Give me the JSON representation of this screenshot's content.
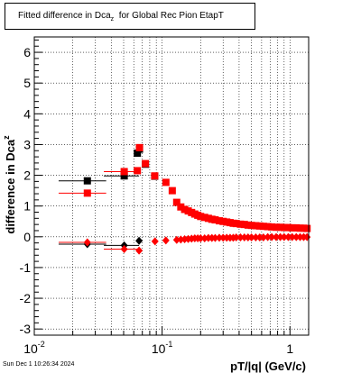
{
  "title": {
    "main": "Fitted difference in Dca",
    "sub": "z",
    "rest": "  for Global Rec Pion EtapT"
  },
  "datestamp": "Sun Dec  1 10:26:34 2024",
  "chart_data": {
    "type": "scatter",
    "title": "Fitted difference in Dca_z  for Global Rec Pion EtapT",
    "xlabel": "pT/|q| (GeV/c)",
    "ylabel_main": "difference in Dca",
    "ylabel_sub": "z",
    "xscale": "log",
    "xlim": [
      0.01,
      1.4
    ],
    "ylim": [
      -3.2,
      6.5
    ],
    "grid": true,
    "yticks": [
      -3,
      -2,
      -1,
      0,
      1,
      2,
      3,
      4,
      5,
      6
    ],
    "xtick_labels": [
      {
        "value": 0.01,
        "base": "10",
        "exp": "-2"
      },
      {
        "value": 0.1,
        "base": "10",
        "exp": "-1"
      },
      {
        "value": 1,
        "base": "1",
        "exp": ""
      }
    ],
    "colors": {
      "black": "#000000",
      "red": "#ff0000"
    },
    "series": [
      {
        "marker": "square",
        "color": "#000000",
        "x": [
          0.026,
          0.0505,
          0.064,
          0.0665,
          0.074,
          0.0875
        ],
        "y": [
          1.82,
          1.98,
          2.72,
          2.85,
          2.36,
          1.97
        ],
        "xerr_lo": [
          0.0105,
          0.0155,
          0,
          0,
          0,
          0
        ],
        "xerr_hi": [
          0.0105,
          0.0155,
          0,
          0,
          0,
          0
        ]
      },
      {
        "marker": "square",
        "color": "#ff0000",
        "x": [
          0.026,
          0.0505,
          0.064,
          0.0665,
          0.074,
          0.0875,
          0.107,
          0.12,
          0.13,
          0.14,
          0.15,
          0.16,
          0.17,
          0.18,
          0.19,
          0.2,
          0.215,
          0.23,
          0.245,
          0.26,
          0.28,
          0.3,
          0.32,
          0.34,
          0.36,
          0.38,
          0.41,
          0.44,
          0.47,
          0.5,
          0.54,
          0.58,
          0.62,
          0.67,
          0.72,
          0.78,
          0.84,
          0.9,
          0.97,
          1.04,
          1.12,
          1.2,
          1.28,
          1.36
        ],
        "y": [
          1.42,
          2.12,
          2.15,
          2.9,
          2.38,
          1.98,
          1.77,
          1.5,
          1.12,
          0.97,
          0.89,
          0.84,
          0.79,
          0.74,
          0.7,
          0.66,
          0.63,
          0.6,
          0.57,
          0.55,
          0.52,
          0.5,
          0.48,
          0.46,
          0.44,
          0.43,
          0.41,
          0.4,
          0.38,
          0.37,
          0.36,
          0.35,
          0.34,
          0.33,
          0.32,
          0.31,
          0.31,
          0.3,
          0.3,
          0.29,
          0.29,
          0.28,
          0.28,
          0.27
        ],
        "xerr_lo": [
          0.0105,
          0.0155,
          0,
          0,
          0,
          0,
          0,
          0,
          0,
          0,
          0,
          0,
          0,
          0,
          0,
          0,
          0,
          0,
          0,
          0,
          0,
          0,
          0,
          0,
          0,
          0,
          0,
          0,
          0,
          0,
          0,
          0,
          0,
          0,
          0,
          0,
          0,
          0,
          0,
          0,
          0,
          0,
          0,
          0
        ],
        "xerr_hi": [
          0.0105,
          0.0155,
          0,
          0,
          0,
          0,
          0,
          0,
          0,
          0,
          0,
          0,
          0,
          0,
          0,
          0,
          0,
          0,
          0,
          0,
          0,
          0,
          0,
          0,
          0,
          0,
          0,
          0,
          0,
          0,
          0,
          0,
          0,
          0,
          0,
          0,
          0,
          0,
          0,
          0,
          0,
          0,
          0,
          0
        ]
      },
      {
        "marker": "diamond",
        "color": "#000000",
        "x": [
          0.026,
          0.0505,
          0.066
        ],
        "y": [
          -0.24,
          -0.28,
          -0.13
        ],
        "xerr_lo": [
          0.0105,
          0.0155,
          0
        ],
        "xerr_hi": [
          0.0105,
          0.0155,
          0
        ]
      },
      {
        "marker": "diamond",
        "color": "#ff0000",
        "x": [
          0.026,
          0.0505,
          0.066,
          0.088,
          0.107,
          0.13,
          0.14,
          0.15,
          0.16,
          0.17,
          0.18,
          0.19,
          0.2,
          0.215,
          0.23,
          0.245,
          0.26,
          0.28,
          0.3,
          0.32,
          0.34,
          0.36,
          0.38,
          0.41,
          0.44,
          0.47,
          0.5,
          0.54,
          0.58,
          0.62,
          0.67,
          0.72,
          0.78,
          0.84,
          0.9,
          0.97,
          1.04,
          1.12,
          1.2,
          1.28,
          1.36
        ],
        "y": [
          -0.18,
          -0.4,
          -0.45,
          -0.15,
          -0.12,
          -0.1,
          -0.09,
          -0.08,
          -0.07,
          -0.06,
          -0.05,
          -0.05,
          -0.05,
          -0.05,
          -0.04,
          -0.04,
          -0.04,
          -0.03,
          -0.03,
          -0.03,
          -0.03,
          -0.03,
          -0.02,
          -0.02,
          -0.02,
          -0.02,
          -0.02,
          -0.02,
          -0.02,
          -0.02,
          -0.01,
          -0.01,
          -0.01,
          -0.01,
          -0.01,
          -0.01,
          -0.01,
          -0.01,
          -0.01,
          -0.01,
          -0.01
        ],
        "xerr_lo": [
          0.0105,
          0.0155,
          0,
          0,
          0,
          0,
          0,
          0,
          0,
          0,
          0,
          0,
          0,
          0,
          0,
          0,
          0,
          0,
          0,
          0,
          0,
          0,
          0,
          0,
          0,
          0,
          0,
          0,
          0,
          0,
          0,
          0,
          0,
          0,
          0,
          0,
          0,
          0,
          0,
          0,
          0
        ],
        "xerr_hi": [
          0.0105,
          0.0155,
          0,
          0,
          0,
          0,
          0,
          0,
          0,
          0,
          0,
          0,
          0,
          0,
          0,
          0,
          0,
          0,
          0,
          0,
          0,
          0,
          0,
          0,
          0,
          0,
          0,
          0,
          0,
          0,
          0,
          0,
          0,
          0,
          0,
          0,
          0,
          0,
          0,
          0,
          0
        ]
      }
    ]
  }
}
